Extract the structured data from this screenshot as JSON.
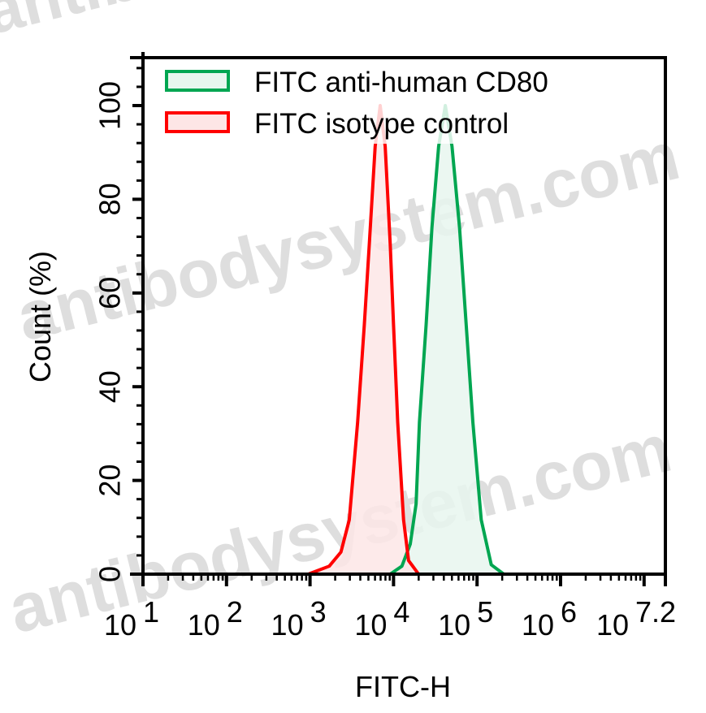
{
  "chart_data": {
    "type": "area",
    "title": "",
    "xlabel": "FITC-H",
    "ylabel": "Count (%)",
    "xscale": "log10",
    "xlim_log10": [
      1,
      7.2
    ],
    "ylim": [
      0,
      110
    ],
    "x_ticks": [
      {
        "base": "10",
        "exp": "1",
        "log": 1
      },
      {
        "base": "10",
        "exp": "2",
        "log": 2
      },
      {
        "base": "10",
        "exp": "3",
        "log": 3
      },
      {
        "base": "10",
        "exp": "4",
        "log": 4
      },
      {
        "base": "10",
        "exp": "5",
        "log": 5
      },
      {
        "base": "10",
        "exp": "6",
        "log": 6
      },
      {
        "base": "10",
        "exp": "7.2",
        "log": 7.2
      }
    ],
    "y_ticks": [
      0,
      20,
      40,
      60,
      80,
      100
    ],
    "y_minor_step": 4,
    "grid": false,
    "legend_position": "upper left",
    "series": [
      {
        "name": "FITC anti-human CD80",
        "stroke": "#00a651",
        "fill": "#e8f6ee",
        "x_log10": [
          3.96,
          4.1,
          4.2,
          4.27,
          4.31,
          4.39,
          4.46,
          4.54,
          4.62,
          4.7,
          4.79,
          4.87,
          4.95,
          5.05,
          5.17,
          5.32
        ],
        "values": [
          0,
          1.7,
          6.4,
          15.0,
          32.4,
          53.2,
          74.0,
          91.3,
          100,
          91.3,
          74.0,
          53.2,
          32.4,
          11.6,
          2.0,
          0
        ]
      },
      {
        "name": "FITC isotype control",
        "stroke": "#ff0000",
        "fill": "#fde6e6",
        "x_log10": [
          2.98,
          3.23,
          3.37,
          3.47,
          3.57,
          3.65,
          3.71,
          3.78,
          3.84,
          3.9,
          3.96,
          4.0,
          4.05,
          4.12,
          4.18,
          4.3
        ],
        "values": [
          0,
          1.7,
          4.7,
          11.6,
          32.4,
          53.2,
          70.5,
          91.3,
          100,
          91.3,
          70.5,
          53.2,
          32.4,
          11.6,
          2.9,
          0
        ]
      }
    ]
  },
  "watermark": {
    "text": "antibodysystem.com"
  }
}
